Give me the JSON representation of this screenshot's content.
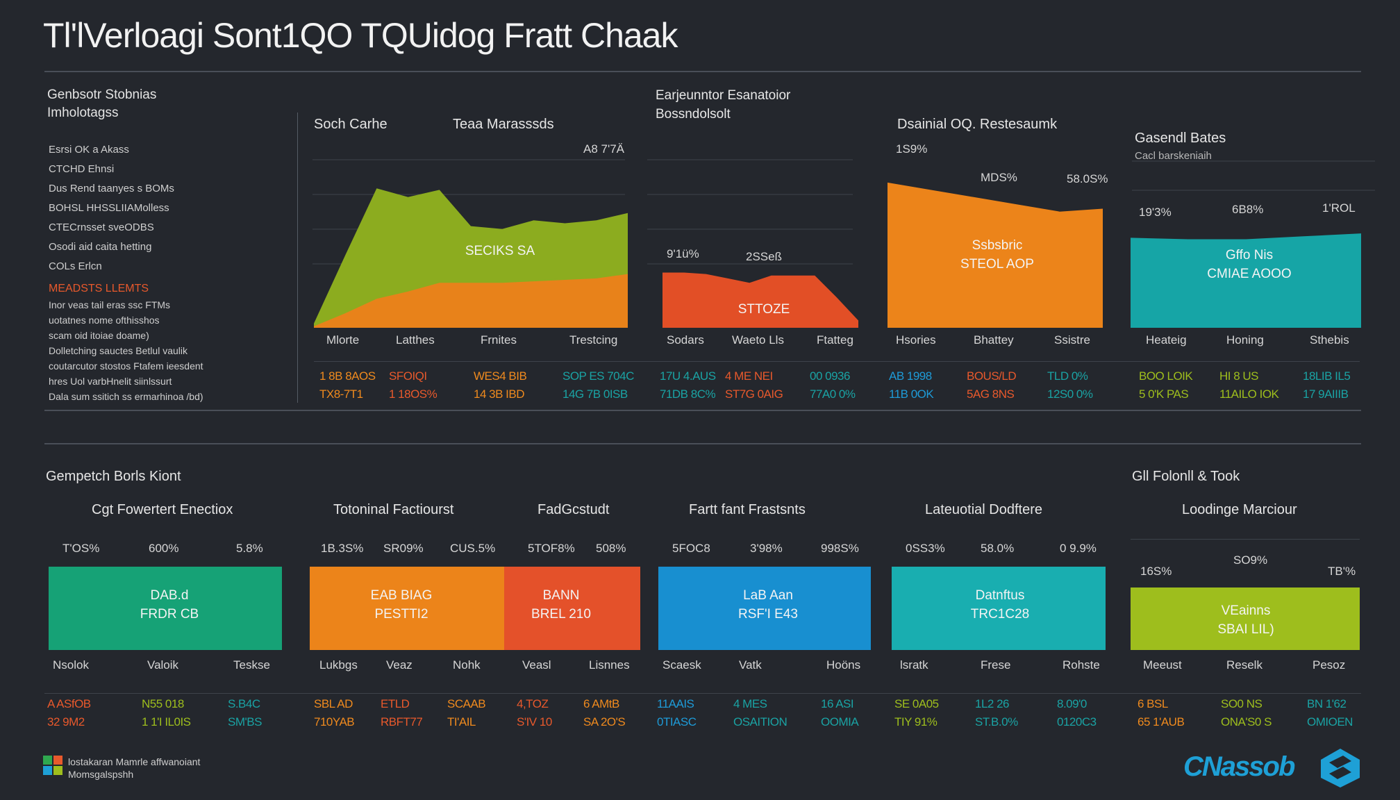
{
  "title": "Tl'lVerloagi Sont1QO TQUidog Fratt Chaak",
  "sidebar": {
    "heading_line1": "Genbsotr Stobnias",
    "heading_line2": "Imholotagss",
    "items": [
      "Esrsi OK a Akass",
      "CTCHD Ehnsi",
      "Dus Rend taanyes s BOMs",
      "BOHSL HHSSLIIAMolless",
      "CTECrnsset sveODBS",
      "Osodi aid caita hetting",
      "COLs Erlcn"
    ],
    "alert_label": "MEADSTS LLEMTS",
    "notes": [
      "Inor veas tail eras ssc FTMs",
      "uotatnes nome ofthisshos",
      "scam oid itoiae doame)",
      "Dolletching sauctes Betlul vaulik",
      "coutarcutor stostos Ftafem ieesdent",
      "hres Uol varbHnelit siinlssurt",
      "Dala sum ssitich ss ermarhinoa /bd)"
    ]
  },
  "top_panels": {
    "p1": {
      "title_a": "Soch Carhe",
      "title_b": "Teaa Marasssds",
      "corner": "A8 7'7Ä",
      "inner": "SECIKS SA"
    },
    "p2": {
      "heading_line1": "Earjeunntor Esanatoior",
      "heading_line2": "Bossndolsolt",
      "v1": "9'1ü%",
      "v2": "2SSeß",
      "inner": "STTOZE"
    },
    "p3": {
      "title": "Dsainial OQ. Restesaumk",
      "v1": "1S9%",
      "v2": "MDS%",
      "v3": "58.0S%",
      "inner_line1": "Ssbsbric",
      "inner_line2": "STEOL AOP"
    },
    "p4": {
      "title": "Gasendl Bates",
      "subtitle": "Cacl barskeniaih",
      "v1": "19'3%",
      "v2": "6B8%",
      "v3": "1'ROL",
      "inner_line1": "Gffo Nis",
      "inner_line2": "CMIAE AOOO"
    }
  },
  "top_axis_labels": [
    "Mlorte",
    "Latthes",
    "Frnites",
    "Trestcing",
    "Sodars",
    "Waeto Lls",
    "Ftatteg",
    "Hsories",
    "Bhattey",
    "Ssistre",
    "Heateig",
    "Honing",
    "Sthebis"
  ],
  "top_rows": {
    "row1": [
      "1 8B 8AOS",
      "SFOIQI",
      "WES4 BIB",
      "SOP ES 704C",
      "17U 4.AUS",
      "4 ME NEI",
      "00 0936",
      "AB 1998",
      "BOUS/LD",
      "TLD 0%",
      "BOO LOIK",
      "HI 8 US",
      "18LIB IL5"
    ],
    "row2": [
      "TX8-7T1",
      "1 18OS%",
      "14 3B IBD",
      "14G 7B 0ISB",
      "71DB 8C%",
      "ST7G 0AIG",
      "77A0 0%",
      "11B 0OK",
      "5AG 8NS",
      "12S0 0%",
      "5 0'K PAS",
      "11AILO IOK",
      "17 9AIIIB"
    ]
  },
  "bottom_panels": {
    "section_left": "Gempetch Borls Kiont",
    "section_right": "Gll Folonll & Took",
    "b1": {
      "title": "Cgt Fowertert Enectiox",
      "v1": "T'OS%",
      "v2": "600%",
      "v3": "5.8%",
      "inner_line1": "DAB.d",
      "inner_line2": "FRDR CB"
    },
    "b2": {
      "title_a": "Totoninal Factiourst",
      "title_b": "FadGcstudt",
      "v1": "1B.3S%",
      "v2": "SR09%",
      "v3": "CUS.5%",
      "v4": "5TOF8%",
      "v5": "508%",
      "inner_a1": "EAB BIAG",
      "inner_a2": "PESTTI2",
      "inner_b1": "BANN",
      "inner_b2": "BREL 210"
    },
    "b3": {
      "title": "Fartt fant Frastsnts",
      "v1": "5FOC8",
      "v2": "3'98%",
      "v3": "998S%",
      "inner_line1": "LaB Aan",
      "inner_line2": "RSF'I E43"
    },
    "b4": {
      "title": "Lateuotial Dodftere",
      "v1": "0SS3%",
      "v2": "58.0%",
      "v3": "0 9.9%",
      "inner_line1": "Datnftus",
      "inner_line2": "TRC1C28"
    },
    "b5": {
      "title": "Loodinge Marciour",
      "v1": "16S%",
      "v2": "SO9%",
      "v3": "TB'%",
      "inner_line1": "VEainns",
      "inner_line2": "SBAI LIL)"
    }
  },
  "bottom_axis_labels": [
    "Nsolok",
    "Valoik",
    "Teskse",
    "Lukbgs",
    "Veaz",
    "Nohk",
    "Veasl",
    "Lisnnes",
    "Scaesk",
    "Vatk",
    "Hoöns",
    "lsratk",
    "Frese",
    "Rohste",
    "Meeust",
    "Reselk",
    "Pesoz"
  ],
  "bottom_rows": {
    "row1": [
      "A ASfOB",
      "N55 018",
      "S.B4C",
      "SBL AD",
      "ETLD",
      "SCAAB",
      "4,TOZ",
      "6 AMtB",
      "11AAIS",
      "4 MES",
      "16 ASI",
      "SE 0A05",
      "1L2 26",
      "8.09'0",
      "6 BSL",
      "SO0 NS",
      "BN 1'62"
    ],
    "row2": [
      "32 9M2",
      "1 1'I IL0IS",
      "SM'BS",
      "710YAB",
      "RBFT77",
      "TI'AIL",
      "S'IV 10",
      "SA 2O'S",
      "0TIASC",
      "OSAITION",
      "OOMIA",
      "TIY 91%",
      "ST.B.0%",
      "0120C3",
      "65 1'AUB",
      "ONA'S0 S",
      "OMIOEN"
    ]
  },
  "footer": {
    "line1": "lostakaran Mamrle affwanoiant",
    "line2": "Momsgalspshh",
    "brand": "CNassob"
  },
  "chart_data": [
    {
      "type": "area",
      "title": "",
      "series": [
        {
          "color": "#8cac1f",
          "values": [
            3,
            50,
            96,
            90,
            95,
            70,
            68,
            74,
            72,
            74,
            79
          ]
        },
        {
          "color": "#e8821a",
          "values": [
            1,
            10,
            20,
            25,
            31,
            31,
            31,
            32,
            33,
            34,
            37
          ]
        }
      ],
      "ylim": [
        0,
        110
      ]
    },
    {
      "type": "area",
      "series": [
        {
          "color": "#e24f26",
          "values": [
            38,
            38,
            37,
            34,
            31,
            36,
            36,
            36,
            21,
            5
          ]
        }
      ],
      "ylim": [
        0,
        110
      ]
    },
    {
      "type": "area",
      "series": [
        {
          "color": "#ec841a",
          "values": [
            100,
            95,
            90,
            85,
            80,
            82
          ]
        }
      ],
      "ylim": [
        0,
        110
      ]
    },
    {
      "type": "bar",
      "series": [
        {
          "color": "#16a5a6",
          "values": [
            62,
            61,
            61,
            63,
            65
          ]
        }
      ],
      "ylim": [
        0,
        110
      ]
    }
  ]
}
